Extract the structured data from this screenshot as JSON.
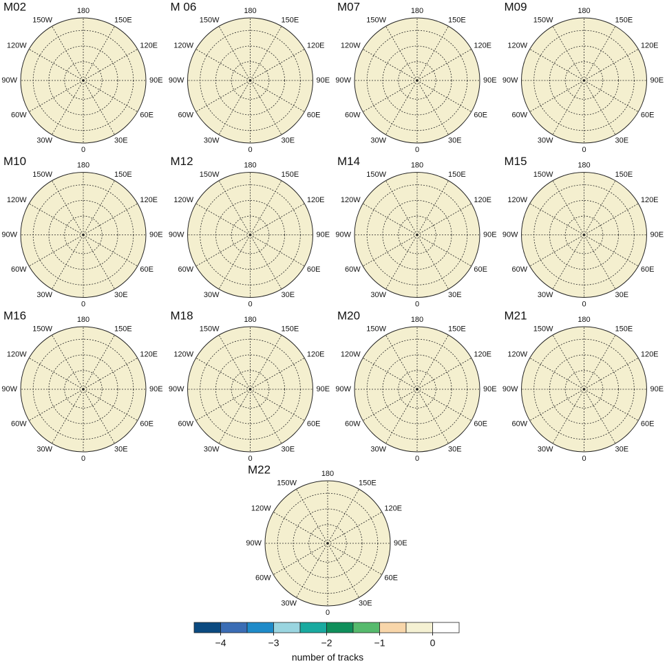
{
  "panels": [
    "M02",
    "M 06",
    "M07",
    "M09",
    "M10",
    "M12",
    "M14",
    "M15",
    "M16",
    "M18",
    "M20",
    "M21",
    "M22"
  ],
  "longitudes": [
    {
      "value": 180,
      "label": "180"
    },
    {
      "value": 150,
      "label": "150E"
    },
    {
      "value": 120,
      "label": "120E"
    },
    {
      "value": 90,
      "label": "90E"
    },
    {
      "value": 60,
      "label": "60E"
    },
    {
      "value": 30,
      "label": "30E"
    },
    {
      "value": 0,
      "label": "0"
    },
    {
      "value": -30,
      "label": "30W"
    },
    {
      "value": -60,
      "label": "60W"
    },
    {
      "value": -90,
      "label": "90W"
    },
    {
      "value": -120,
      "label": "120W"
    },
    {
      "value": -150,
      "label": "150W"
    }
  ],
  "colorbar": {
    "bounds": [
      -4.5,
      -4,
      -3.5,
      -3,
      -2.5,
      -2,
      -1.5,
      -1,
      -0.5,
      0,
      0.5
    ],
    "colors": [
      "#0b4a80",
      "#3b6db5",
      "#1f8bc9",
      "#9ad5e0",
      "#19aaa0",
      "#0f8f5b",
      "#56ba6d",
      "#f8d6aa",
      "#f5f1d3",
      "#ffffff"
    ],
    "ticks": [
      {
        "value": -4,
        "label": "−4"
      },
      {
        "value": -3,
        "label": "−3"
      },
      {
        "value": -2,
        "label": "−2"
      },
      {
        "value": -1,
        "label": "−1"
      },
      0
    ],
    "label": "number of tracks"
  }
}
